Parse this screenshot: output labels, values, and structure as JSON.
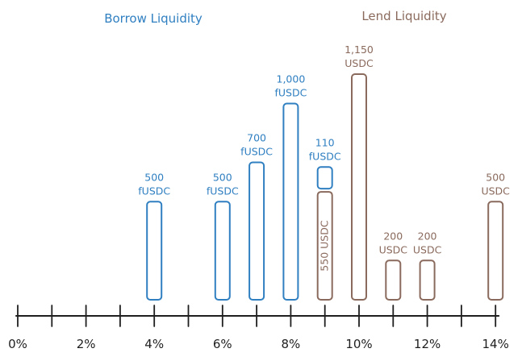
{
  "colors": {
    "borrow": "#2f7fc1",
    "lend": "#8a6a5d",
    "axis": "#1f1f1f",
    "background": "#ffffff"
  },
  "legend": {
    "borrow": "Borrow Liquidity",
    "lend": "Lend Liquidity"
  },
  "chart_data": {
    "type": "bar",
    "x_unit": "%",
    "xlim": [
      0,
      14
    ],
    "x_ticks": [
      "0%",
      "2%",
      "4%",
      "6%",
      "8%",
      "10%",
      "12%",
      "14%"
    ],
    "grid": false,
    "legend_position": "top",
    "series": [
      {
        "name": "Borrow Liquidity",
        "color": "#2f7fc1",
        "points": [
          {
            "x": 4,
            "value": 500,
            "label": [
              "500",
              "fUSDC"
            ]
          },
          {
            "x": 6,
            "value": 500,
            "label": [
              "500",
              "fUSDC"
            ]
          },
          {
            "x": 7,
            "value": 700,
            "label": [
              "700",
              "fUSDC"
            ]
          },
          {
            "x": 8,
            "value": 1000,
            "label": [
              "1,000",
              "fUSDC"
            ]
          },
          {
            "x": 9,
            "value": 110,
            "stacked_on": 550,
            "label": [
              "110",
              "fUSDC"
            ]
          }
        ]
      },
      {
        "name": "Lend Liquidity",
        "color": "#8a6a5d",
        "points": [
          {
            "x": 9,
            "value": 550,
            "label": [
              "550 USDC"
            ],
            "label_inside": true
          },
          {
            "x": 10,
            "value": 1150,
            "label": [
              "1,150",
              "USDC"
            ]
          },
          {
            "x": 11,
            "value": 200,
            "label": [
              "200",
              "USDC"
            ]
          },
          {
            "x": 12,
            "value": 200,
            "label": [
              "200",
              "USDC"
            ]
          },
          {
            "x": 14,
            "value": 500,
            "label": [
              "500",
              "USDC"
            ]
          }
        ]
      }
    ]
  }
}
